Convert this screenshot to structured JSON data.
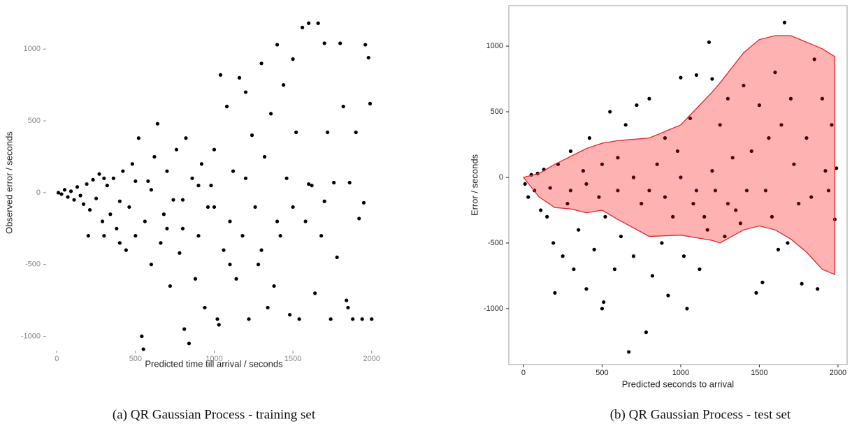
{
  "chart_data": [
    {
      "type": "scatter",
      "caption": "(a) QR Gaussian Process - training set",
      "x_label": "Predicted time till arrival / seconds",
      "y_label": "Observed error / seconds",
      "xlim": [
        -50,
        2050
      ],
      "ylim": [
        -1080,
        1220
      ],
      "xticks": [
        0,
        500,
        1000,
        1500,
        2000
      ],
      "yticks": [
        -1000,
        -500,
        0,
        500,
        1000
      ],
      "frame": false,
      "tick_color": "#888888",
      "series": [
        {
          "type": "scatter",
          "color": "#000000",
          "x": [
            10,
            30,
            50,
            70,
            90,
            110,
            130,
            150,
            170,
            190,
            210,
            230,
            250,
            270,
            290,
            300,
            320,
            340,
            360,
            380,
            400,
            420,
            440,
            460,
            480,
            500,
            520,
            540,
            550,
            560,
            580,
            600,
            620,
            640,
            660,
            680,
            700,
            720,
            740,
            760,
            780,
            800,
            810,
            820,
            840,
            860,
            880,
            900,
            920,
            940,
            960,
            980,
            1000,
            1020,
            1030,
            1040,
            1060,
            1080,
            1100,
            1120,
            1140,
            1160,
            1180,
            1200,
            1220,
            1240,
            1260,
            1280,
            1300,
            1320,
            1340,
            1360,
            1380,
            1400,
            1420,
            1440,
            1460,
            1480,
            1500,
            1520,
            1540,
            1560,
            1580,
            1600,
            1620,
            1640,
            1660,
            1680,
            1700,
            1720,
            1740,
            1760,
            1780,
            1800,
            1820,
            1840,
            1860,
            1880,
            1900,
            1920,
            1940,
            1960,
            1980,
            1990,
            2000,
            1850,
            1950,
            1700,
            1600,
            1500,
            1400,
            1300,
            1200,
            1100,
            1000,
            900,
            800,
            700,
            600,
            500,
            400,
            300,
            200
          ],
          "values": [
            0,
            -10,
            20,
            -30,
            10,
            -50,
            40,
            -20,
            -80,
            60,
            -120,
            90,
            -40,
            130,
            -200,
            -300,
            50,
            -150,
            100,
            -250,
            -60,
            150,
            -400,
            -100,
            200,
            -300,
            380,
            -1000,
            -1090,
            -200,
            80,
            -500,
            250,
            480,
            -350,
            -150,
            150,
            -650,
            -50,
            300,
            -420,
            -250,
            -950,
            380,
            -1050,
            100,
            -600,
            -300,
            200,
            -800,
            -100,
            50,
            300,
            -880,
            -920,
            820,
            -400,
            600,
            -200,
            150,
            -600,
            800,
            -300,
            700,
            -880,
            400,
            -100,
            -500,
            900,
            250,
            -800,
            550,
            -650,
            1030,
            -300,
            750,
            100,
            -850,
            930,
            420,
            -880,
            1150,
            -200,
            1180,
            50,
            -700,
            1180,
            -300,
            1040,
            420,
            -880,
            70,
            -450,
            1040,
            600,
            -750,
            70,
            -880,
            420,
            -180,
            -880,
            1030,
            940,
            620,
            -880,
            -800,
            -70,
            -60,
            60,
            -100,
            -200,
            -400,
            100,
            -500,
            -100,
            50,
            -50,
            -250,
            20,
            80,
            -350,
            100,
            -300
          ]
        }
      ]
    },
    {
      "type": "scatter",
      "caption": "(b) QR Gaussian Process - test set",
      "x_label": "Predicted seconds to arrival",
      "y_label": "Error / seconds",
      "xlim": [
        -93,
        2058
      ],
      "ylim": [
        -1426,
        1309
      ],
      "xticks": [
        0,
        500,
        1000,
        1500,
        2000
      ],
      "yticks": [
        -1000,
        -500,
        0,
        500,
        1000
      ],
      "frame": true,
      "tick_color": "#222222",
      "series": [
        {
          "type": "scatter",
          "color": "#000000",
          "x": [
            10,
            30,
            50,
            70,
            90,
            110,
            130,
            150,
            170,
            190,
            200,
            220,
            250,
            280,
            300,
            320,
            350,
            380,
            400,
            420,
            450,
            480,
            500,
            510,
            520,
            550,
            580,
            600,
            620,
            650,
            670,
            700,
            720,
            750,
            780,
            800,
            820,
            850,
            880,
            900,
            920,
            950,
            980,
            1000,
            1020,
            1040,
            1060,
            1080,
            1100,
            1120,
            1150,
            1170,
            1180,
            1200,
            1220,
            1250,
            1280,
            1300,
            1330,
            1350,
            1380,
            1400,
            1420,
            1450,
            1480,
            1500,
            1520,
            1540,
            1560,
            1580,
            1600,
            1620,
            1640,
            1660,
            1680,
            1700,
            1720,
            1750,
            1770,
            1800,
            1830,
            1850,
            1870,
            1900,
            1920,
            1940,
            1960,
            1980,
            1990,
            600,
            700,
            800,
            900,
            400,
            300,
            500,
            1000,
            1100,
            1200,
            1300
          ],
          "values": [
            -50,
            -150,
            20,
            -100,
            30,
            -250,
            60,
            -300,
            -80,
            -500,
            -880,
            100,
            -600,
            -200,
            200,
            -700,
            -400,
            50,
            -850,
            300,
            -550,
            -150,
            -1000,
            -950,
            -300,
            500,
            -700,
            150,
            -450,
            400,
            -1330,
            -600,
            550,
            -200,
            -1180,
            600,
            -750,
            100,
            -500,
            300,
            -900,
            -300,
            200,
            760,
            -600,
            -1000,
            450,
            -200,
            780,
            -700,
            -300,
            -400,
            1030,
            750,
            -100,
            400,
            -450,
            600,
            150,
            -250,
            -350,
            700,
            -100,
            200,
            -880,
            550,
            -800,
            -100,
            300,
            -300,
            800,
            -550,
            400,
            1180,
            -500,
            600,
            100,
            -200,
            -810,
            300,
            -150,
            900,
            -850,
            600,
            50,
            -100,
            400,
            -320,
            70,
            -100,
            0,
            -100,
            -150,
            -50,
            -100,
            100,
            0,
            -100,
            50,
            -200
          ]
        },
        {
          "type": "area",
          "color": "#ff0000",
          "opacity": 0.3,
          "edge_color": "#e8232a",
          "x": [
            0,
            100,
            200,
            300,
            400,
            500,
            600,
            800,
            1000,
            1200,
            1250,
            1400,
            1500,
            1600,
            1700,
            1800,
            1900,
            1980
          ],
          "upper": [
            0,
            30,
            100,
            160,
            220,
            260,
            280,
            300,
            400,
            650,
            720,
            950,
            1050,
            1080,
            1080,
            1030,
            980,
            920
          ],
          "lower": [
            0,
            -150,
            -230,
            -240,
            -270,
            -250,
            -320,
            -450,
            -440,
            -480,
            -500,
            -400,
            -370,
            -400,
            -470,
            -570,
            -700,
            -740
          ]
        }
      ]
    }
  ]
}
